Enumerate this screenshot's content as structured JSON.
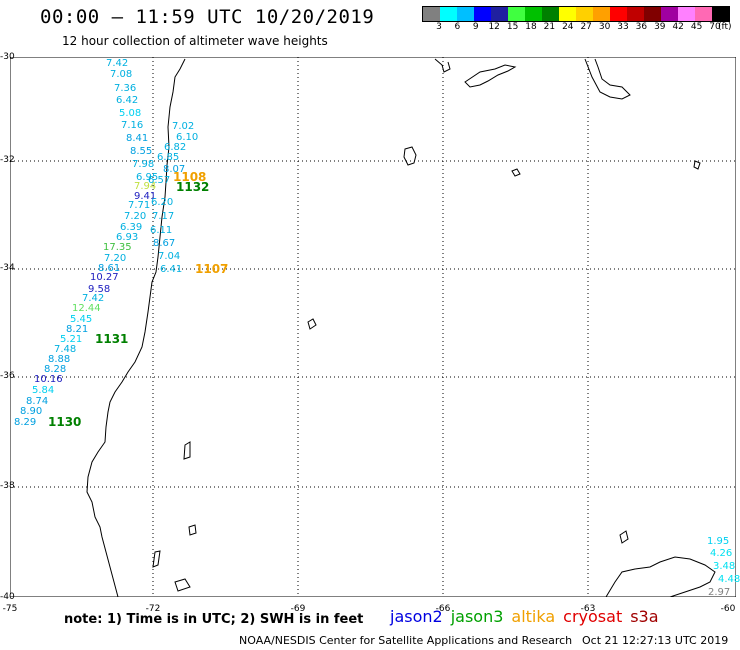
{
  "header": {
    "title": "00:00 – 11:59 UTC 10/20/2019",
    "subtitle": "12 hour collection of altimeter wave heights"
  },
  "legend": {
    "colors": [
      "#808080",
      "#00ffff",
      "#00bfff",
      "#0000ff",
      "#2020a0",
      "#40ff40",
      "#00c000",
      "#008000",
      "#ffff00",
      "#ffd000",
      "#ffa000",
      "#ff0000",
      "#c00000",
      "#800000",
      "#a000a0",
      "#ff80ff",
      "#ff69b4",
      "#000000"
    ],
    "labels": [
      "3",
      "6",
      "9",
      "12",
      "15",
      "18",
      "21",
      "24",
      "27",
      "30",
      "33",
      "36",
      "39",
      "42",
      "45",
      "70"
    ],
    "unit": "(ft)"
  },
  "axes": {
    "lat_labels": [
      "-30",
      "-32",
      "-34",
      "-36",
      "-38",
      "-40"
    ],
    "lon_labels": [
      "-75",
      "-72",
      "-69",
      "-66",
      "-63",
      "-60"
    ]
  },
  "observations": [
    {
      "text": "7.42",
      "color": "#00b0e0"
    },
    {
      "text": "7.08",
      "color": "#00b0e0"
    },
    {
      "text": "7.36",
      "color": "#00b0e0"
    },
    {
      "text": "6.42",
      "color": "#00b0e0"
    },
    {
      "text": "5.08",
      "color": "#00d0f0"
    },
    {
      "text": "7.16",
      "color": "#00b0e0"
    },
    {
      "text": "8.41",
      "color": "#00a0e0"
    },
    {
      "text": "8.55",
      "color": "#00a0e0"
    },
    {
      "text": "7.98",
      "color": "#00b0e0"
    },
    {
      "text": "6.95",
      "color": "#00b0e0"
    },
    {
      "text": "7.94",
      "color": "#c0e040"
    },
    {
      "text": "9.41",
      "color": "#2020c0"
    },
    {
      "text": "7.71",
      "color": "#00b0e0"
    },
    {
      "text": "7.20",
      "color": "#00b0e0"
    },
    {
      "text": "6.39",
      "color": "#00b0e0"
    },
    {
      "text": "6.93",
      "color": "#00b0e0"
    },
    {
      "text": "17.35",
      "color": "#40c040"
    },
    {
      "text": "7.20",
      "color": "#00b0e0"
    },
    {
      "text": "8.61",
      "color": "#00a0e0"
    },
    {
      "text": "10.27",
      "color": "#2020c0"
    },
    {
      "text": "9.58",
      "color": "#2020c0"
    },
    {
      "text": "7.42",
      "color": "#00b0e0"
    },
    {
      "text": "12.44",
      "color": "#60e060"
    },
    {
      "text": "5.45",
      "color": "#00d0f0"
    },
    {
      "text": "8.21",
      "color": "#00a0e0"
    },
    {
      "text": "5.21",
      "color": "#00d0f0"
    },
    {
      "text": "7.48",
      "color": "#00b0e0"
    },
    {
      "text": "8.88",
      "color": "#00a0e0"
    },
    {
      "text": "8.28",
      "color": "#00a0e0"
    },
    {
      "text": "10.16",
      "color": "#2020c0"
    },
    {
      "text": "5.84",
      "color": "#00d0f0"
    },
    {
      "text": "8.74",
      "color": "#00a0e0"
    },
    {
      "text": "8.90",
      "color": "#00a0e0"
    },
    {
      "text": "8.29",
      "color": "#00a0e0"
    },
    {
      "text": "7.02",
      "color": "#00b0e0"
    },
    {
      "text": "6.10",
      "color": "#00b0e0"
    },
    {
      "text": "6.82",
      "color": "#00b0e0"
    },
    {
      "text": "6.85",
      "color": "#00b0e0"
    },
    {
      "text": "8.07",
      "color": "#00a0e0"
    },
    {
      "text": "6.57",
      "color": "#00b0e0"
    },
    {
      "text": "6.20",
      "color": "#00b0e0"
    },
    {
      "text": "7.17",
      "color": "#00b0e0"
    },
    {
      "text": "6.11",
      "color": "#00b0e0"
    },
    {
      "text": "8.67",
      "color": "#00a0e0"
    },
    {
      "text": "7.04",
      "color": "#00b0e0"
    },
    {
      "text": "6.41",
      "color": "#00b0e0"
    },
    {
      "text": "1.95",
      "color": "#00d0f0"
    },
    {
      "text": "4.26",
      "color": "#00e0f0"
    },
    {
      "text": "3.48",
      "color": "#00e0f0"
    },
    {
      "text": "4.48",
      "color": "#00e0f0"
    },
    {
      "text": "2.97",
      "color": "#808080"
    }
  ],
  "passes": [
    {
      "text": "1108",
      "color": "#f0a000"
    },
    {
      "text": "1132",
      "color": "#008000"
    },
    {
      "text": "1107",
      "color": "#f0a000"
    },
    {
      "text": "1131",
      "color": "#008000"
    },
    {
      "text": "1130",
      "color": "#008000"
    }
  ],
  "note": "note: 1) Time is in UTC; 2) SWH is in feet",
  "satellites": [
    {
      "name": "jason2",
      "color": "#0000e0"
    },
    {
      "name": "jason3",
      "color": "#00a000"
    },
    {
      "name": "altika",
      "color": "#f0a000"
    },
    {
      "name": "cryosat",
      "color": "#e00000"
    },
    {
      "name": "s3a",
      "color": "#a00000"
    }
  ],
  "footer": {
    "credit": "NOAA/NESDIS Center for Satellite Applications and Research",
    "timestamp": "Oct 21 12:27:13 UTC 2019"
  }
}
